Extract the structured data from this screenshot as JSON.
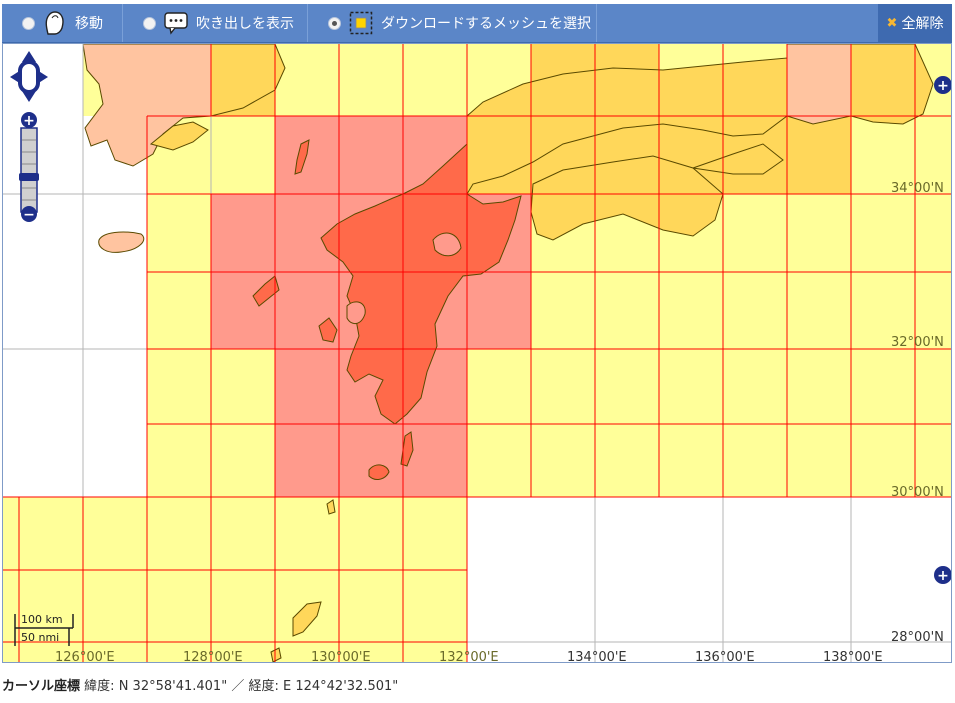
{
  "toolbar": {
    "tools": [
      {
        "label": "移動",
        "icon": "hand-icon",
        "selected": false
      },
      {
        "label": "吹き出しを表示",
        "icon": "speech-bubble-icon",
        "selected": false
      },
      {
        "label": "ダウンロードするメッシュを選択",
        "icon": "mesh-select-icon",
        "selected": true
      }
    ],
    "clear_label": "全解除",
    "clear_icon": "close-icon"
  },
  "map": {
    "longitude_labels": [
      "126°00'E",
      "128°00'E",
      "130°00'E",
      "132°00'E",
      "134°00'E",
      "136°00'E",
      "138°00'E"
    ],
    "latitude_labels": [
      "34°00'N",
      "32°00'N",
      "30°00'N",
      "28°00'N"
    ],
    "scale": {
      "km": "100 km",
      "nmi": "50 nmi"
    },
    "colors": {
      "mesh_available": "#ffff99",
      "mesh_partial": "#ffd75a",
      "mesh_selected": "#ff9a8c",
      "mesh_orange": "#ffc04c",
      "land_selected": "#ff6a4a",
      "grid_line": "#ff0000",
      "coast": "#5a4a00"
    }
  },
  "status": {
    "cursor_label": "カーソル座標",
    "lat_label": "緯度:",
    "lat_value": "N 32°58'41.401\"",
    "separator": "／",
    "lon_label": "経度:",
    "lon_value": "E 124°42'32.501\""
  }
}
